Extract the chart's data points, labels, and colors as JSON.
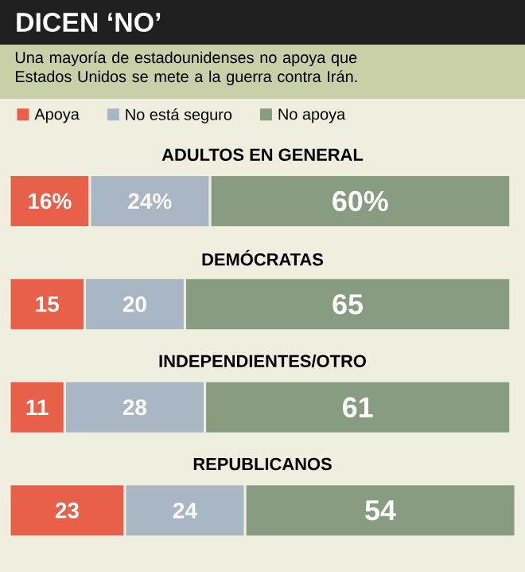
{
  "chart_data": {
    "type": "bar",
    "orientation": "horizontal",
    "stacked": true,
    "title": "DICEN ‘NO’",
    "subtitle": "Una mayoría de estadounidenses no apoya que Estados Unidos se mete a la guerra contra Irán.",
    "categories": [
      "ADULTOS EN GENERAL",
      "DEMÓCRATAS",
      "INDEPENDIENTES/OTRO",
      "REPUBLICANOS"
    ],
    "series": [
      {
        "name": "Apoya",
        "color": "#e8604a",
        "values": [
          16,
          15,
          11,
          23
        ],
        "value_labels": [
          "16%",
          "15",
          "11",
          "23"
        ]
      },
      {
        "name": "No está seguro",
        "color": "#a9b6c3",
        "values": [
          24,
          20,
          28,
          24
        ],
        "value_labels": [
          "24%",
          "20",
          "28",
          "24"
        ]
      },
      {
        "name": "No apoya",
        "color": "#879c80",
        "values": [
          60,
          65,
          61,
          54
        ],
        "value_labels": [
          "60%",
          "65",
          "61",
          "54"
        ]
      }
    ],
    "legend": "top left"
  }
}
